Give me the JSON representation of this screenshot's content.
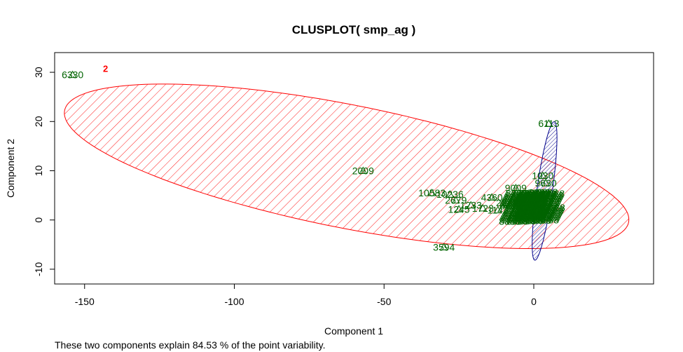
{
  "chart_data": {
    "type": "scatter",
    "title": "CLUSPLOT( smp_ag )",
    "xlabel": "Component 1",
    "ylabel": "Component 2",
    "xlim": [
      -160,
      40
    ],
    "ylim": [
      -13,
      34
    ],
    "xticks": [
      -150,
      -100,
      -50,
      0
    ],
    "yticks": [
      -10,
      0,
      10,
      20,
      30
    ],
    "grid": false,
    "caption": "These two components explain 84.53 % of the point variability.",
    "colors": {
      "cluster_2": "#ff0000",
      "cluster_1": "#00008b",
      "points": "#006400",
      "axes": "#000000"
    },
    "clusters": [
      {
        "id": "2",
        "label": "2",
        "label_at": [
          -143,
          30.8
        ],
        "cx": -62.5,
        "cy": 10.9,
        "rx": 96,
        "ry": 12.5,
        "angle_deg": 11.2,
        "color": "#ff0000"
      },
      {
        "id": "1",
        "label": "",
        "cx": 3.6,
        "cy": 5.9,
        "rx": 2.6,
        "ry": 14.2,
        "angle_deg": 8,
        "color": "#00008b"
      }
    ],
    "points": [
      {
        "x": -154,
        "y": 29.5,
        "label": "6330"
      },
      {
        "x": 5,
        "y": 19.6,
        "label": "6113"
      },
      {
        "x": -57,
        "y": 10.0,
        "label": "2009"
      },
      {
        "x": -30,
        "y": -5.5,
        "label": "3594"
      },
      {
        "x": -34,
        "y": 5.5,
        "label": "10583"
      },
      {
        "x": -14,
        "y": 4.6,
        "label": "4360"
      },
      {
        "x": -6,
        "y": 6.5,
        "label": "9009"
      },
      {
        "x": 3,
        "y": 9.0,
        "label": "1030"
      },
      {
        "x": 4,
        "y": 7.5,
        "label": "9630"
      },
      {
        "x": -26,
        "y": 4.0,
        "label": "2679"
      },
      {
        "x": -21,
        "y": 3.0,
        "label": "1233"
      },
      {
        "x": -17,
        "y": 2.4,
        "label": "1723"
      },
      {
        "x": -25,
        "y": 2.2,
        "label": "1245"
      },
      {
        "x": -12,
        "y": 2.0,
        "label": "1142"
      },
      {
        "x": -9,
        "y": 3.5,
        "label": "2271"
      },
      {
        "x": -28,
        "y": 5.2,
        "label": "10236"
      },
      {
        "x": -4,
        "y": 1.5,
        "label": "5127"
      },
      {
        "x": -2,
        "y": 4.5,
        "label": "3721"
      }
    ]
  }
}
